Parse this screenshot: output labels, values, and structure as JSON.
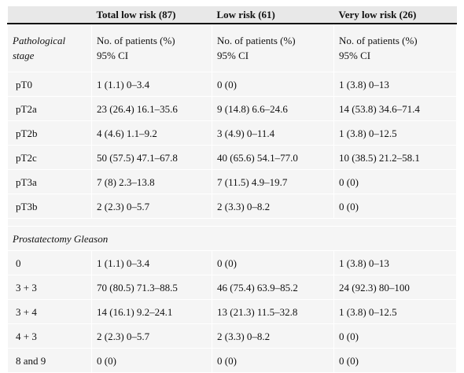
{
  "header": {
    "col1": "",
    "col2": "Total low risk (87)",
    "col3": "Low risk (61)",
    "col4": "Very low risk (26)"
  },
  "stage_row": {
    "label_line1": "Pathological",
    "label_line2": "stage",
    "c2_line1": "No. of patients (%)",
    "c2_line2": "95% CI",
    "c3_line1": "No. of patients (%)",
    "c3_line2": "95% CI",
    "c4_line1": "No. of patients (%)",
    "c4_line2": "95% CI"
  },
  "stage_rows": [
    {
      "label": "pT0",
      "total": "1 (1.1) 0–3.4",
      "low": "0 (0)",
      "very_low": "1 (3.8) 0–13"
    },
    {
      "label": "pT2a",
      "total": "23 (26.4) 16.1–35.6",
      "low": "9 (14.8) 6.6–24.6",
      "very_low": "14 (53.8) 34.6–71.4"
    },
    {
      "label": "pT2b",
      "total": "4 (4.6) 1.1–9.2",
      "low": "3 (4.9) 0–11.4",
      "very_low": "1 (3.8) 0–12.5"
    },
    {
      "label": "pT2c",
      "total": "50 (57.5) 47.1–67.8",
      "low": "40 (65.6) 54.1–77.0",
      "very_low": "10 (38.5) 21.2–58.1"
    },
    {
      "label": "pT3a",
      "total": "7 (8) 2.3–13.8",
      "low": "7 (11.5) 4.9–19.7",
      "very_low": "0 (0)"
    },
    {
      "label": "pT3b",
      "total": "2 (2.3) 0–5.7",
      "low": "2 (3.3) 0–8.2",
      "very_low": "0 (0)"
    }
  ],
  "gleason_section_label": "Prostatectomy Gleason",
  "gleason_rows": [
    {
      "label": "0",
      "total": "1 (1.1) 0–3.4",
      "low": "0 (0)",
      "very_low": "1 (3.8) 0–13"
    },
    {
      "label": "3 + 3",
      "total": "70 (80.5) 71.3–88.5",
      "low": "46 (75.4) 63.9–85.2",
      "very_low": "24 (92.3) 80–100"
    },
    {
      "label": "3 + 4",
      "total": "14 (16.1) 9.2–24.1",
      "low": "13 (21.3) 11.5–32.8",
      "very_low": "1 (3.8) 0–12.5"
    },
    {
      "label": "4 + 3",
      "total": "2 (2.3) 0–5.7",
      "low": "2 (3.3) 0–8.2",
      "very_low": "0 (0)"
    },
    {
      "label": "8 and 9",
      "total": "0 (0)",
      "low": "0 (0)",
      "very_low": "0 (0)"
    }
  ]
}
